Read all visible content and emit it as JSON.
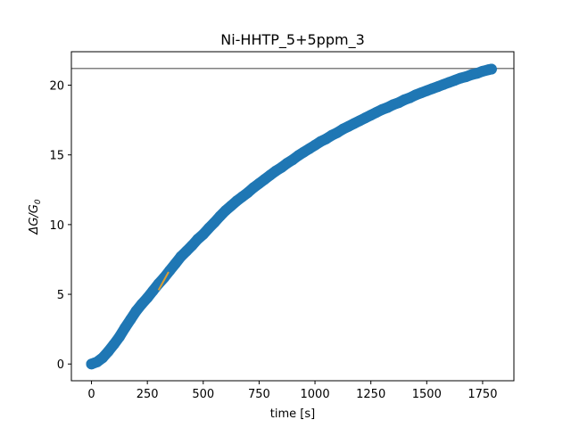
{
  "chart_data": {
    "type": "scatter",
    "title": "Ni-HHTP_5+5ppm_3",
    "xlabel": "time [s]",
    "ylabel_main": "ΔG/G",
    "ylabel_sub": "0",
    "xlim": [
      -90,
      1890
    ],
    "ylim": [
      -1.2,
      22.4
    ],
    "xticks": [
      0,
      250,
      500,
      750,
      1000,
      1250,
      1500,
      1750
    ],
    "yticks": [
      0,
      5,
      10,
      15,
      20
    ],
    "grid": false,
    "colors": {
      "points": "#1f77b4",
      "fit_line": "#e0a030",
      "hline": "#808080"
    },
    "series": [
      {
        "kind": "points",
        "x": [
          0,
          25,
          50,
          75,
          100,
          125,
          150,
          175,
          200,
          225,
          250,
          275,
          300,
          325,
          350,
          375,
          400,
          425,
          450,
          475,
          500,
          525,
          550,
          575,
          600,
          625,
          650,
          675,
          700,
          725,
          750,
          775,
          800,
          825,
          850,
          875,
          900,
          925,
          950,
          975,
          1000,
          1025,
          1050,
          1075,
          1100,
          1125,
          1150,
          1175,
          1200,
          1225,
          1250,
          1275,
          1300,
          1325,
          1350,
          1375,
          1400,
          1425,
          1450,
          1475,
          1500,
          1525,
          1550,
          1575,
          1600,
          1625,
          1650,
          1675,
          1700,
          1725,
          1750,
          1775,
          1790
        ],
        "y": [
          0.0,
          0.15,
          0.45,
          0.9,
          1.4,
          1.95,
          2.6,
          3.2,
          3.8,
          4.3,
          4.75,
          5.25,
          5.75,
          6.2,
          6.7,
          7.2,
          7.7,
          8.1,
          8.5,
          8.95,
          9.3,
          9.75,
          10.15,
          10.6,
          11.0,
          11.35,
          11.7,
          12.0,
          12.3,
          12.65,
          12.95,
          13.25,
          13.55,
          13.85,
          14.1,
          14.4,
          14.65,
          14.95,
          15.2,
          15.45,
          15.7,
          15.95,
          16.15,
          16.4,
          16.6,
          16.85,
          17.05,
          17.25,
          17.45,
          17.65,
          17.85,
          18.05,
          18.25,
          18.4,
          18.6,
          18.75,
          18.95,
          19.1,
          19.3,
          19.45,
          19.6,
          19.75,
          19.9,
          20.05,
          20.2,
          20.35,
          20.5,
          20.6,
          20.75,
          20.85,
          21.0,
          21.1,
          21.15
        ]
      },
      {
        "kind": "fit_line",
        "x": [
          300,
          345
        ],
        "y": [
          5.3,
          6.6
        ]
      },
      {
        "kind": "hline",
        "y": 21.2
      }
    ]
  }
}
